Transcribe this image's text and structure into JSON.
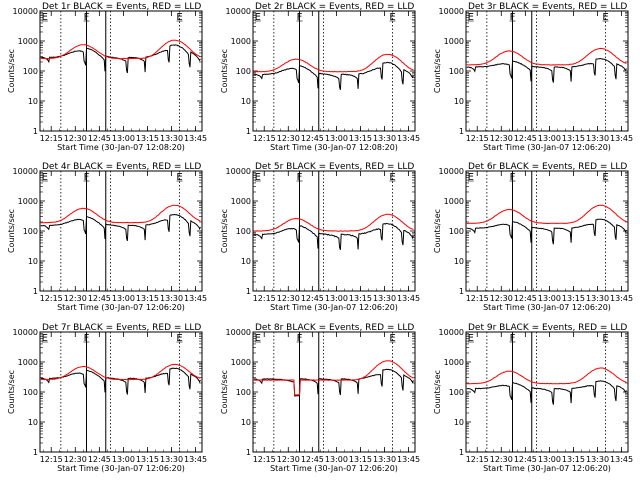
{
  "chart_data": [
    {
      "type": "line",
      "title": "Det 1r BLACK = Events, RED = LLD",
      "xlabel": "Start Time (30-Jan-07 12:08:20)",
      "ylabel": "Counts/sec",
      "x_ticks": [
        "12:15",
        "12:30",
        "12:45",
        "13:00",
        "13:15",
        "13:30",
        "13:45"
      ],
      "y_ticks": [
        "1",
        "10",
        "100",
        "1000",
        "10000"
      ],
      "ylim": [
        1,
        10000
      ],
      "y_scale": "log",
      "xlim_minutes": [
        0,
        101
      ],
      "markers": [
        {
          "label": "E",
          "t": 3
        },
        {
          "label": "F",
          "t": 29
        },
        {
          "label": "E",
          "t": 87
        }
      ],
      "series": [
        {
          "color": "#000000",
          "base": 240,
          "peaks": [
            [
              27,
              2.1
            ],
            [
              84,
              2.6
            ]
          ],
          "segments": [
            [
              0,
              6
            ],
            [
              6,
              29
            ],
            [
              29,
              41
            ],
            [
              41,
              55
            ],
            [
              55,
              66
            ],
            [
              66,
              81
            ],
            [
              81,
              94
            ],
            [
              94,
              100
            ]
          ],
          "noise": 0.02
        },
        {
          "color": "#ff0000",
          "base": 260,
          "peaks": [
            [
              27,
              2.9
            ],
            [
              84,
              4.1
            ]
          ],
          "segments": [],
          "noise": 0.015
        }
      ]
    },
    {
      "type": "line",
      "title": "Det 2r BLACK = Events, RED = LLD",
      "xlabel": "Start Time (30-Jan-07 12:08:20)",
      "ylabel": "Counts/sec",
      "x_ticks": [
        "12:15",
        "12:30",
        "12:45",
        "13:00",
        "13:15",
        "13:30",
        "13:45"
      ],
      "y_ticks": [
        "1",
        "10",
        "100",
        "1000",
        "10000"
      ],
      "ylim": [
        1,
        10000
      ],
      "y_scale": "log",
      "xlim_minutes": [
        0,
        101
      ],
      "markers": [
        {
          "label": "E",
          "t": 3
        },
        {
          "label": "F",
          "t": 29
        },
        {
          "label": "E",
          "t": 87
        }
      ],
      "series": [
        {
          "color": "#000000",
          "base": 65,
          "peaks": [
            [
              27,
              2.0
            ],
            [
              84,
              2.5
            ]
          ],
          "segments": [
            [
              0,
              6
            ],
            [
              6,
              29
            ],
            [
              29,
              41
            ],
            [
              41,
              55
            ],
            [
              55,
              66
            ],
            [
              66,
              81
            ],
            [
              81,
              94
            ],
            [
              94,
              100
            ]
          ],
          "noise": 0.025
        },
        {
          "color": "#ff0000",
          "base": 95,
          "peaks": [
            [
              27,
              2.6
            ],
            [
              84,
              3.8
            ]
          ],
          "segments": [],
          "noise": 0.015
        }
      ]
    },
    {
      "type": "line",
      "title": "Det 3r BLACK = Events, RED = LLD",
      "xlabel": "Start Time (30-Jan-07 12:06:20)",
      "ylabel": "Counts/sec",
      "x_ticks": [
        "12:15",
        "12:30",
        "12:45",
        "13:00",
        "13:15",
        "13:30",
        "13:45"
      ],
      "y_ticks": [
        "1",
        "10",
        "100",
        "1000",
        "10000"
      ],
      "ylim": [
        1,
        10000
      ],
      "y_scale": "log",
      "xlim_minutes": [
        0,
        101
      ],
      "markers": [
        {
          "label": "E",
          "t": 3
        },
        {
          "label": "F",
          "t": 29
        },
        {
          "label": "E",
          "t": 87
        }
      ],
      "series": [
        {
          "color": "#000000",
          "base": 115,
          "peaks": [
            [
              27,
              1.6
            ],
            [
              84,
              1.9
            ]
          ],
          "segments": [
            [
              0,
              6
            ],
            [
              6,
              29
            ],
            [
              29,
              41
            ],
            [
              41,
              55
            ],
            [
              55,
              66
            ],
            [
              66,
              81
            ],
            [
              81,
              94
            ],
            [
              94,
              100
            ]
          ],
          "noise": 0.02
        },
        {
          "color": "#ff0000",
          "base": 160,
          "peaks": [
            [
              27,
              2.9
            ],
            [
              84,
              3.5
            ]
          ],
          "segments": [],
          "noise": 0.015
        }
      ]
    },
    {
      "type": "line",
      "title": "Det 4r BLACK = Events, RED = LLD",
      "xlabel": "Start Time (30-Jan-07 12:06:20)",
      "ylabel": "Counts/sec",
      "x_ticks": [
        "12:15",
        "12:30",
        "12:45",
        "13:00",
        "13:15",
        "13:30",
        "13:45"
      ],
      "y_ticks": [
        "1",
        "10",
        "100",
        "1000",
        "10000"
      ],
      "ylim": [
        1,
        10000
      ],
      "y_scale": "log",
      "xlim_minutes": [
        0,
        101
      ],
      "markers": [
        {
          "label": "E",
          "t": 3
        },
        {
          "label": "F",
          "t": 29
        },
        {
          "label": "E",
          "t": 87
        }
      ],
      "series": [
        {
          "color": "#000000",
          "base": 130,
          "peaks": [
            [
              27,
              2.0
            ],
            [
              84,
              2.3
            ]
          ],
          "segments": [
            [
              0,
              6
            ],
            [
              6,
              29
            ],
            [
              29,
              41
            ],
            [
              41,
              55
            ],
            [
              55,
              66
            ],
            [
              66,
              81
            ],
            [
              81,
              94
            ],
            [
              94,
              100
            ]
          ],
          "noise": 0.02
        },
        {
          "color": "#ff0000",
          "base": 190,
          "peaks": [
            [
              27,
              3.0
            ],
            [
              84,
              3.8
            ]
          ],
          "segments": [],
          "noise": 0.015
        }
      ]
    },
    {
      "type": "line",
      "title": "Det 5r BLACK = Events, RED = LLD",
      "xlabel": "Start Time (30-Jan-07 12:06:20)",
      "ylabel": "Counts/sec",
      "x_ticks": [
        "12:15",
        "12:30",
        "12:45",
        "13:00",
        "13:15",
        "13:30",
        "13:45"
      ],
      "y_ticks": [
        "1",
        "10",
        "100",
        "1000",
        "10000"
      ],
      "ylim": [
        1,
        10000
      ],
      "y_scale": "log",
      "xlim_minutes": [
        0,
        101
      ],
      "markers": [
        {
          "label": "E",
          "t": 3
        },
        {
          "label": "F",
          "t": 29
        },
        {
          "label": "E",
          "t": 87
        }
      ],
      "series": [
        {
          "color": "#000000",
          "base": 65,
          "peaks": [
            [
              27,
              2.0
            ],
            [
              84,
              2.3
            ]
          ],
          "segments": [
            [
              0,
              6
            ],
            [
              6,
              29
            ],
            [
              29,
              41
            ],
            [
              41,
              55
            ],
            [
              55,
              66
            ],
            [
              66,
              81
            ],
            [
              81,
              94
            ],
            [
              94,
              100
            ]
          ],
          "noise": 0.03
        },
        {
          "color": "#ff0000",
          "base": 100,
          "peaks": [
            [
              27,
              2.6
            ],
            [
              84,
              3.6
            ]
          ],
          "segments": [],
          "noise": 0.015
        }
      ]
    },
    {
      "type": "line",
      "title": "Det 6r BLACK = Events, RED = LLD",
      "xlabel": "Start Time (30-Jan-07 12:06:20)",
      "ylabel": "Counts/sec",
      "x_ticks": [
        "12:15",
        "12:30",
        "12:45",
        "13:00",
        "13:15",
        "13:30",
        "13:45"
      ],
      "y_ticks": [
        "1",
        "10",
        "100",
        "1000",
        "10000"
      ],
      "ylim": [
        1,
        10000
      ],
      "y_scale": "log",
      "xlim_minutes": [
        0,
        101
      ],
      "markers": [
        {
          "label": "E",
          "t": 3
        },
        {
          "label": "F",
          "t": 29
        },
        {
          "label": "E",
          "t": 87
        }
      ],
      "series": [
        {
          "color": "#000000",
          "base": 105,
          "peaks": [
            [
              27,
              1.7
            ],
            [
              84,
              2.0
            ]
          ],
          "segments": [
            [
              0,
              6
            ],
            [
              6,
              29
            ],
            [
              29,
              41
            ],
            [
              41,
              55
            ],
            [
              55,
              66
            ],
            [
              66,
              81
            ],
            [
              81,
              94
            ],
            [
              94,
              100
            ]
          ],
          "noise": 0.02
        },
        {
          "color": "#ff0000",
          "base": 180,
          "peaks": [
            [
              27,
              2.9
            ],
            [
              84,
              4.0
            ]
          ],
          "segments": [],
          "noise": 0.015
        }
      ]
    },
    {
      "type": "line",
      "title": "Det 7r BLACK = Events, RED = LLD",
      "xlabel": "Start Time (30-Jan-07 12:06:20)",
      "ylabel": "Counts/sec",
      "x_ticks": [
        "12:15",
        "12:30",
        "12:45",
        "13:00",
        "13:15",
        "13:30",
        "13:45"
      ],
      "y_ticks": [
        "1",
        "10",
        "100",
        "1000",
        "10000"
      ],
      "ylim": [
        1,
        10000
      ],
      "y_scale": "log",
      "xlim_minutes": [
        0,
        101
      ],
      "markers": [
        {
          "label": "E",
          "t": 3
        },
        {
          "label": "F",
          "t": 29
        },
        {
          "label": "E",
          "t": 87
        }
      ],
      "series": [
        {
          "color": "#000000",
          "base": 240,
          "peaks": [
            [
              27,
              1.9
            ],
            [
              84,
              2.2
            ]
          ],
          "segments": [
            [
              0,
              6
            ],
            [
              6,
              29
            ],
            [
              29,
              41
            ],
            [
              41,
              55
            ],
            [
              55,
              66
            ],
            [
              66,
              81
            ],
            [
              81,
              94
            ],
            [
              94,
              100
            ]
          ],
          "noise": 0.02
        },
        {
          "color": "#ff0000",
          "base": 260,
          "peaks": [
            [
              27,
              2.7
            ],
            [
              84,
              3.2
            ]
          ],
          "segments": [],
          "noise": 0.015
        }
      ]
    },
    {
      "type": "line",
      "title": "Det 8r BLACK = Events, RED = LLD",
      "xlabel": "Start Time (30-Jan-07 12:06:20)",
      "ylabel": "Counts/sec",
      "x_ticks": [
        "12:15",
        "12:30",
        "12:45",
        "13:00",
        "13:15",
        "13:30",
        "13:45"
      ],
      "y_ticks": [
        "1",
        "10",
        "100",
        "1000",
        "10000"
      ],
      "ylim": [
        1,
        10000
      ],
      "y_scale": "log",
      "xlim_minutes": [
        0,
        101
      ],
      "markers": [
        {
          "label": "E",
          "t": 3
        },
        {
          "label": "F",
          "t": 29
        },
        {
          "label": "E",
          "t": 87
        }
      ],
      "series": [
        {
          "color": "#000000",
          "base": 230,
          "peaks": [
            [
              84,
              2.1
            ]
          ],
          "dip": [
            26,
            29,
            75
          ],
          "segments": [
            [
              0,
              6
            ],
            [
              6,
              29
            ],
            [
              29,
              41
            ],
            [
              41,
              55
            ],
            [
              55,
              66
            ],
            [
              66,
              81
            ],
            [
              81,
              94
            ],
            [
              94,
              100
            ]
          ],
          "noise": 0.02
        },
        {
          "color": "#ff0000",
          "base": 250,
          "peaks": [
            [
              84,
              4.4
            ]
          ],
          "dip": [
            26,
            29,
            80
          ],
          "segments": [],
          "noise": 0.015
        }
      ]
    },
    {
      "type": "line",
      "title": "Det 9r BLACK = Events, RED = LLD",
      "xlabel": "Start Time (30-Jan-07 12:06:20)",
      "ylabel": "Counts/sec",
      "x_ticks": [
        "12:15",
        "12:30",
        "12:45",
        "13:00",
        "13:15",
        "13:30",
        "13:45"
      ],
      "y_ticks": [
        "1",
        "10",
        "100",
        "1000",
        "10000"
      ],
      "ylim": [
        1,
        10000
      ],
      "y_scale": "log",
      "xlim_minutes": [
        0,
        101
      ],
      "markers": [
        {
          "label": "E",
          "t": 3
        },
        {
          "label": "F",
          "t": 29
        },
        {
          "label": "E",
          "t": 87
        }
      ],
      "series": [
        {
          "color": "#000000",
          "base": 110,
          "peaks": [
            [
              27,
              1.6
            ],
            [
              84,
              1.8
            ]
          ],
          "segments": [
            [
              0,
              6
            ],
            [
              6,
              29
            ],
            [
              29,
              41
            ],
            [
              41,
              55
            ],
            [
              55,
              66
            ],
            [
              66,
              81
            ],
            [
              81,
              94
            ],
            [
              94,
              100
            ]
          ],
          "noise": 0.02
        },
        {
          "color": "#ff0000",
          "base": 190,
          "peaks": [
            [
              27,
              2.6
            ],
            [
              84,
              3.3
            ]
          ],
          "segments": [],
          "noise": 0.015
        }
      ]
    }
  ]
}
